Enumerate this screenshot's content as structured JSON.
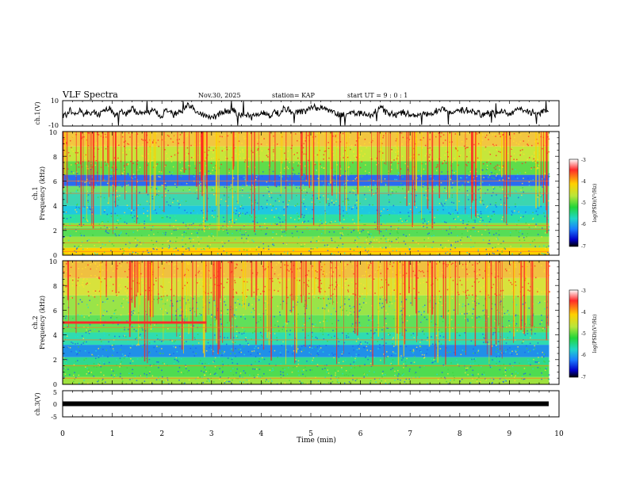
{
  "header": {
    "title": "VLF Spectra",
    "date": "Nov.30, 2025",
    "station": "station= KAP",
    "start": "start  UT =   9 : 0  : 1"
  },
  "colorbar": {
    "label": "log(PSD)(V²/Hz)",
    "ticks": [
      "-3",
      "-4",
      "-5",
      "-6",
      "-7"
    ],
    "colors": [
      "#ffffff",
      "#ff2a2a",
      "#ffd000",
      "#b9e63a",
      "#22d63a",
      "#1fd6c8",
      "#1a7dff",
      "#0000c8",
      "#000000"
    ]
  },
  "chart_data": [
    {
      "type": "line",
      "name": "ch1-waveform",
      "ylabel": "ch.1(V)",
      "ylim": [
        -10,
        10
      ],
      "yticks": [
        "10",
        "-10"
      ],
      "xlim": [
        0,
        10
      ],
      "baseline": 0.5,
      "noise_amplitude": 4
    },
    {
      "type": "heatmap",
      "name": "ch1-spectrogram",
      "ylabel": "ch.1",
      "ylabel2": "Frequency (kHz)",
      "xlim": [
        0,
        10
      ],
      "ylim": [
        0,
        10
      ],
      "yticks": [
        "0",
        "2",
        "4",
        "6",
        "8",
        "10"
      ],
      "data_end_min": 9.8,
      "bands_khz": [
        {
          "from": 0,
          "to": 0.6,
          "color": "#ffd000"
        },
        {
          "from": 0.6,
          "to": 1.5,
          "color": "#9fe23e"
        },
        {
          "from": 1.5,
          "to": 2.2,
          "color": "#56dd56"
        },
        {
          "from": 2.2,
          "to": 2.6,
          "color": "#8fdf40"
        },
        {
          "from": 2.6,
          "to": 3.3,
          "color": "#2ee0a0"
        },
        {
          "from": 3.3,
          "to": 4.0,
          "color": "#1fc8e0"
        },
        {
          "from": 4.0,
          "to": 5.1,
          "color": "#3cd6b0"
        },
        {
          "from": 5.1,
          "to": 5.6,
          "color": "#6fe070"
        },
        {
          "from": 5.6,
          "to": 6.5,
          "color": "#2a6cf0"
        },
        {
          "from": 6.5,
          "to": 7.6,
          "color": "#5fdc4a"
        },
        {
          "from": 7.6,
          "to": 8.8,
          "color": "#c7e63a"
        },
        {
          "from": 8.8,
          "to": 10,
          "color": "#f2c640"
        }
      ],
      "lines_khz": [
        0.3,
        1.0,
        2.1,
        2.4,
        5.0,
        6.0
      ]
    },
    {
      "type": "heatmap",
      "name": "ch2-spectrogram",
      "ylabel": "ch.2",
      "ylabel2": "Frequency (kHz)",
      "xlim": [
        0,
        10
      ],
      "ylim": [
        0,
        10
      ],
      "yticks": [
        "0",
        "2",
        "4",
        "6",
        "8",
        "10"
      ],
      "data_end_min": 9.8,
      "bands_khz": [
        {
          "from": 0,
          "to": 0.6,
          "color": "#9fe23e"
        },
        {
          "from": 0.6,
          "to": 1.6,
          "color": "#4fdc50"
        },
        {
          "from": 1.6,
          "to": 2.2,
          "color": "#2fd890"
        },
        {
          "from": 2.2,
          "to": 3.2,
          "color": "#2090e8"
        },
        {
          "from": 3.2,
          "to": 4.2,
          "color": "#2fdcb0"
        },
        {
          "from": 4.2,
          "to": 5.6,
          "color": "#60e05a"
        },
        {
          "from": 5.6,
          "to": 7.2,
          "color": "#9ae448"
        },
        {
          "from": 7.2,
          "to": 8.6,
          "color": "#d8e23c"
        },
        {
          "from": 8.6,
          "to": 10,
          "color": "#f0c040"
        }
      ],
      "lines_khz": [
        0.5,
        1.5,
        3.6,
        4.6
      ],
      "highlight": {
        "from_min": 0,
        "to_min": 2.9,
        "freq_khz": 5.0,
        "color": "#ff2a2a"
      }
    },
    {
      "type": "line",
      "name": "ch3-waveform",
      "ylabel": "ch.3(V)",
      "ylim": [
        -5,
        5
      ],
      "yticks": [
        "5",
        "0",
        "-5"
      ],
      "xlim": [
        0,
        10
      ],
      "value": 0,
      "xlabel": "Time (min)",
      "xticks": [
        "0",
        "1",
        "2",
        "3",
        "4",
        "5",
        "6",
        "7",
        "8",
        "9",
        "10"
      ]
    }
  ]
}
